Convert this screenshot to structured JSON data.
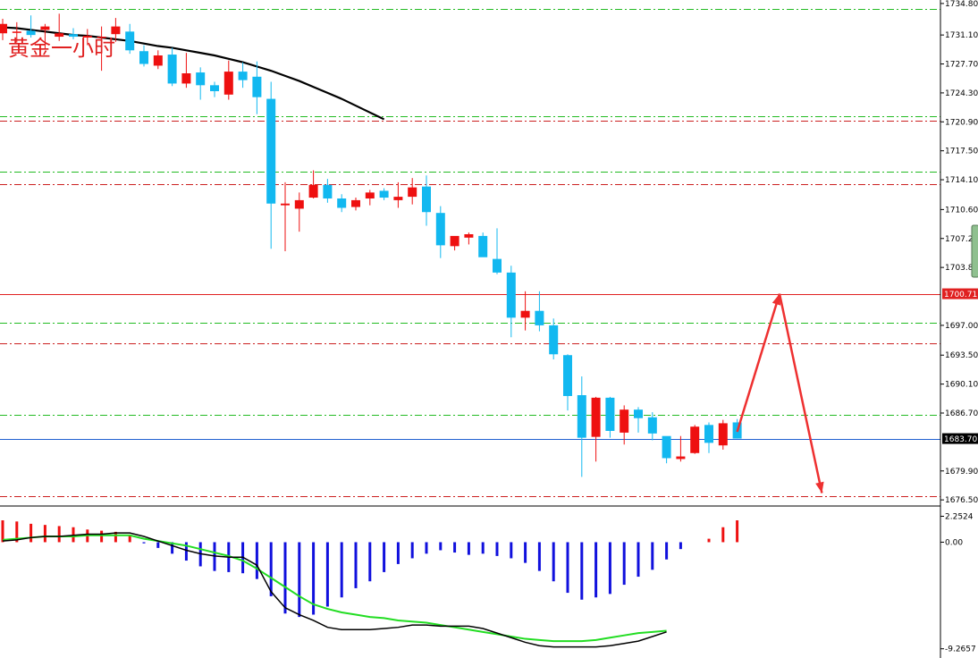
{
  "chart_data": {
    "type": "candlestick",
    "title": "黄金一小时",
    "colors": {
      "up": "#ee1010",
      "down": "#12b8f0",
      "ma": "#000000",
      "hist_pos": "#ee1010",
      "hist_neg": "#1010dd",
      "signal": "#22dd22",
      "macd": "#000000",
      "arrow": "#ee3030"
    },
    "price_axis": {
      "ticks": [
        "1734.80",
        "1731.10",
        "1727.70",
        "1724.30",
        "1720.90",
        "1717.50",
        "1714.10",
        "1710.60",
        "1707.20",
        "1703.80",
        "1697.00",
        "1693.50",
        "1690.10",
        "1686.70",
        "1679.90",
        "1676.50"
      ],
      "ylim": [
        1676.2,
        1735.0
      ]
    },
    "price_tags": [
      {
        "label": "1700.71",
        "value": 1700.71,
        "color": "#e02020"
      },
      {
        "label": "1683.70",
        "value": 1683.7,
        "color": "#000000"
      }
    ],
    "horizontal_levels": [
      {
        "value": 1700.71,
        "style": "solid",
        "color": "#e02020"
      },
      {
        "value": 1683.7,
        "style": "solid",
        "color": "#2060d0"
      },
      {
        "value": 1734.2,
        "style": "dashdot",
        "color": "#22bb22"
      },
      {
        "value": 1721.6,
        "style": "dashdot",
        "color": "#22bb22"
      },
      {
        "value": 1721.0,
        "style": "dashdot",
        "color": "#cc2020"
      },
      {
        "value": 1715.0,
        "style": "dashdot",
        "color": "#22bb22"
      },
      {
        "value": 1713.6,
        "style": "dashdot",
        "color": "#cc2020"
      },
      {
        "value": 1697.3,
        "style": "dashdot",
        "color": "#22bb22"
      },
      {
        "value": 1694.9,
        "style": "dashdot",
        "color": "#cc2020"
      },
      {
        "value": 1686.5,
        "style": "dashdot",
        "color": "#22bb22"
      },
      {
        "value": 1676.9,
        "style": "dashdot",
        "color": "#cc2020"
      }
    ],
    "candles": [
      [
        1731.3,
        1733.0,
        1730.5,
        1732.4
      ],
      [
        1731.4,
        1732.6,
        1730.2,
        1731.5
      ],
      [
        1731.6,
        1733.4,
        1730.8,
        1731.1
      ],
      [
        1731.7,
        1732.4,
        1729.5,
        1732.1
      ],
      [
        1730.9,
        1733.6,
        1730.4,
        1731.3
      ],
      [
        1731.2,
        1731.9,
        1730.6,
        1730.9
      ],
      [
        1730.8,
        1731.8,
        1729.9,
        1731.0
      ],
      [
        1730.8,
        1732.1,
        1726.9,
        1730.9
      ],
      [
        1731.2,
        1733.1,
        1730.3,
        1732.1
      ],
      [
        1731.5,
        1732.4,
        1728.9,
        1729.3
      ],
      [
        1729.2,
        1729.9,
        1727.4,
        1727.7
      ],
      [
        1727.5,
        1729.3,
        1727.1,
        1728.7
      ],
      [
        1728.8,
        1729.6,
        1725.1,
        1725.4
      ],
      [
        1725.4,
        1729.0,
        1724.9,
        1726.6
      ],
      [
        1726.7,
        1727.3,
        1723.5,
        1725.2
      ],
      [
        1725.2,
        1725.6,
        1723.8,
        1724.5
      ],
      [
        1724.1,
        1728.1,
        1723.5,
        1726.8
      ],
      [
        1726.8,
        1727.9,
        1724.9,
        1725.8
      ],
      [
        1726.2,
        1728.0,
        1721.8,
        1723.8
      ],
      [
        1723.6,
        1725.6,
        1706.0,
        1711.3
      ],
      [
        1711.1,
        1713.8,
        1705.7,
        1711.3
      ],
      [
        1710.7,
        1712.6,
        1708.0,
        1711.7
      ],
      [
        1712.0,
        1715.2,
        1711.9,
        1713.5
      ],
      [
        1713.5,
        1714.2,
        1711.4,
        1711.9
      ],
      [
        1711.9,
        1712.4,
        1710.3,
        1710.8
      ],
      [
        1710.9,
        1712.0,
        1710.5,
        1711.7
      ],
      [
        1711.9,
        1712.9,
        1711.1,
        1712.6
      ],
      [
        1712.8,
        1713.1,
        1711.7,
        1712.0
      ],
      [
        1711.7,
        1713.8,
        1710.8,
        1712.1
      ],
      [
        1712.1,
        1714.3,
        1711.2,
        1713.2
      ],
      [
        1713.3,
        1714.6,
        1708.7,
        1710.3
      ],
      [
        1710.2,
        1711.0,
        1704.9,
        1706.4
      ],
      [
        1706.3,
        1707.3,
        1705.8,
        1707.5
      ],
      [
        1707.3,
        1707.9,
        1706.5,
        1707.7
      ],
      [
        1707.5,
        1707.9,
        1705.1,
        1705.0
      ],
      [
        1704.8,
        1708.4,
        1703.0,
        1703.2
      ],
      [
        1703.2,
        1704.0,
        1695.6,
        1697.9
      ],
      [
        1697.9,
        1701.0,
        1696.4,
        1698.7
      ],
      [
        1698.7,
        1701.0,
        1696.3,
        1697.0
      ],
      [
        1697.0,
        1697.8,
        1693.0,
        1693.6
      ],
      [
        1693.5,
        1693.6,
        1687.0,
        1688.7
      ],
      [
        1688.8,
        1691.0,
        1679.2,
        1683.8
      ],
      [
        1683.9,
        1688.6,
        1681.0,
        1688.5
      ],
      [
        1688.5,
        1688.6,
        1683.8,
        1684.6
      ],
      [
        1684.4,
        1687.6,
        1683.0,
        1687.1
      ],
      [
        1687.1,
        1687.4,
        1684.4,
        1686.1
      ],
      [
        1686.2,
        1686.8,
        1683.5,
        1684.3
      ],
      [
        1684.0,
        1683.9,
        1680.8,
        1681.4
      ],
      [
        1681.3,
        1684.0,
        1681.0,
        1681.6
      ],
      [
        1682.0,
        1685.3,
        1681.9,
        1685.1
      ],
      [
        1685.3,
        1685.6,
        1682.0,
        1683.2
      ],
      [
        1682.9,
        1685.9,
        1682.4,
        1685.5
      ],
      [
        1685.6,
        1686.0,
        1683.7,
        1683.7
      ]
    ],
    "moving_average": [
      1732.0,
      1731.9,
      1731.7,
      1731.5,
      1731.3,
      1731.1,
      1731.0,
      1730.8,
      1730.6,
      1730.4,
      1730.1,
      1729.8,
      1729.6,
      1729.3,
      1729.0,
      1728.7,
      1728.3,
      1727.9,
      1727.4,
      1726.9,
      1726.3,
      1725.7,
      1725.0,
      1724.3,
      1723.6,
      1722.8,
      1722.0,
      1721.2
    ],
    "macd_axis": {
      "ticks": [
        "2.2524",
        "0.00",
        "-9.2657"
      ],
      "ylim": [
        -9.6,
        2.6
      ]
    },
    "macd_histogram": [
      1.9,
      1.8,
      1.6,
      1.5,
      1.4,
      1.3,
      1.1,
      1.0,
      0.9,
      0.6,
      -0.1,
      -0.5,
      -1.0,
      -1.6,
      -2.1,
      -2.5,
      -2.6,
      -2.7,
      -3.2,
      -4.7,
      -6.2,
      -6.5,
      -6.3,
      -5.6,
      -4.8,
      -4.0,
      -3.4,
      -2.6,
      -1.9,
      -1.4,
      -1.0,
      -0.7,
      -0.9,
      -1.1,
      -1.0,
      -1.2,
      -1.4,
      -1.8,
      -2.5,
      -3.4,
      -4.4,
      -5.0,
      -4.8,
      -4.5,
      -3.7,
      -3.0,
      -2.4,
      -1.5,
      -0.6,
      0.0,
      0.3,
      1.3,
      1.9
    ],
    "macd_line": [
      0.1,
      0.2,
      0.4,
      0.5,
      0.5,
      0.6,
      0.7,
      0.7,
      0.8,
      0.8,
      0.5,
      0.1,
      -0.3,
      -0.7,
      -1.0,
      -1.2,
      -1.3,
      -1.3,
      -2.0,
      -4.3,
      -5.7,
      -6.3,
      -6.8,
      -7.4,
      -7.6,
      -7.6,
      -7.6,
      -7.5,
      -7.4,
      -7.2,
      -7.2,
      -7.3,
      -7.3,
      -7.3,
      -7.5,
      -7.9,
      -8.3,
      -8.7,
      -9.0,
      -9.1,
      -9.1,
      -9.1,
      -9.1,
      -9.0,
      -8.8,
      -8.6,
      -8.2,
      -7.8
    ],
    "signal_line": [
      0.2,
      0.3,
      0.4,
      0.5,
      0.5,
      0.5,
      0.6,
      0.6,
      0.6,
      0.6,
      0.3,
      0.1,
      -0.1,
      -0.3,
      -0.6,
      -0.9,
      -1.2,
      -1.6,
      -2.3,
      -3.1,
      -3.9,
      -4.7,
      -5.4,
      -5.8,
      -6.1,
      -6.3,
      -6.5,
      -6.6,
      -6.8,
      -6.9,
      -7.0,
      -7.2,
      -7.4,
      -7.6,
      -7.8,
      -8.0,
      -8.2,
      -8.4,
      -8.5,
      -8.6,
      -8.6,
      -8.6,
      -8.5,
      -8.3,
      -8.1,
      -7.9,
      -7.8,
      -7.7
    ],
    "arrows": [
      {
        "from": [
          52,
          1684.5
        ],
        "to": [
          55,
          1700.7
        ]
      },
      {
        "from": [
          55,
          1700.7
        ],
        "to": [
          58,
          1677.3
        ]
      }
    ]
  }
}
